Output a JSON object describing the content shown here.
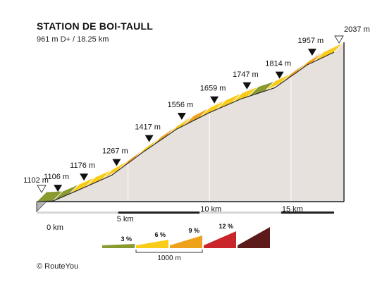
{
  "title": "STATION DE BOI-TAULL",
  "subtitle": "961 m D+ / 18.25 km",
  "credit": "© RouteYou",
  "colors": {
    "green": "#8a9a2e",
    "yellow": "#f9cc1a",
    "orange": "#eea21b",
    "red": "#c9252b",
    "darkred": "#5c1a1a",
    "wall": "#e7e1de",
    "slab": "#b5b5b5",
    "base": "#d0d0d0"
  },
  "legend": {
    "items": [
      {
        "label": "3 %",
        "color": "#8a9a2e"
      },
      {
        "label": "6 %",
        "color": "#f9cc1a"
      },
      {
        "label": "9 %",
        "color": "#eea21b"
      },
      {
        "label": "12 %",
        "color": "#c9252b"
      },
      {
        "label": "",
        "color": "#5c1a1a"
      }
    ],
    "scale_label": "1000 m"
  },
  "chart_data": {
    "type": "area",
    "title": "STATION DE BOI-TAULL",
    "subtitle": "961 m D+ / 18.25 km",
    "x_unit": "km",
    "y_unit": "m",
    "xlim": [
      0,
      18.25
    ],
    "x_ticks": [
      {
        "value": 0,
        "label": "0 km"
      },
      {
        "value": 5,
        "label": "5 km"
      },
      {
        "value": 10,
        "label": "10 km"
      },
      {
        "value": 15,
        "label": "15 km"
      }
    ],
    "markers": [
      {
        "km": 0,
        "elevation": 1102,
        "label": "1102 m",
        "kind": "start"
      },
      {
        "km": 1,
        "elevation": 1106,
        "label": "1106 m",
        "kind": "point"
      },
      {
        "km": 2.6,
        "elevation": 1176,
        "label": "1176 m",
        "kind": "point"
      },
      {
        "km": 4.6,
        "elevation": 1267,
        "label": "1267 m",
        "kind": "point"
      },
      {
        "km": 6.6,
        "elevation": 1417,
        "label": "1417 m",
        "kind": "point"
      },
      {
        "km": 8.6,
        "elevation": 1556,
        "label": "1556 m",
        "kind": "point"
      },
      {
        "km": 10.6,
        "elevation": 1659,
        "label": "1659 m",
        "kind": "point"
      },
      {
        "km": 12.6,
        "elevation": 1747,
        "label": "1747 m",
        "kind": "point"
      },
      {
        "km": 14.6,
        "elevation": 1814,
        "label": "1814 m",
        "kind": "point"
      },
      {
        "km": 16.6,
        "elevation": 1957,
        "label": "1957 m",
        "kind": "point"
      },
      {
        "km": 18.25,
        "elevation": 2037,
        "label": "2037 m",
        "kind": "end"
      }
    ],
    "profile": [
      {
        "km": 0,
        "elevation": 1102
      },
      {
        "km": 1,
        "elevation": 1106
      },
      {
        "km": 2.6,
        "elevation": 1176
      },
      {
        "km": 4.6,
        "elevation": 1267
      },
      {
        "km": 6.6,
        "elevation": 1417
      },
      {
        "km": 8.6,
        "elevation": 1556
      },
      {
        "km": 10.6,
        "elevation": 1659
      },
      {
        "km": 12.6,
        "elevation": 1747
      },
      {
        "km": 14.6,
        "elevation": 1814
      },
      {
        "km": 16.6,
        "elevation": 1957
      },
      {
        "km": 18.25,
        "elevation": 2037
      }
    ],
    "segments": [
      {
        "from_km": 0,
        "to_km": 1,
        "class": "green"
      },
      {
        "from_km": 1,
        "to_km": 2,
        "class": "green"
      },
      {
        "from_km": 2,
        "to_km": 3,
        "class": "yellow"
      },
      {
        "from_km": 3,
        "to_km": 4,
        "class": "yellow"
      },
      {
        "from_km": 4,
        "to_km": 5,
        "class": "yellow"
      },
      {
        "from_km": 5,
        "to_km": 6,
        "class": "orange"
      },
      {
        "from_km": 6,
        "to_km": 7,
        "class": "yellow"
      },
      {
        "from_km": 7,
        "to_km": 8,
        "class": "orange"
      },
      {
        "from_km": 8,
        "to_km": 9,
        "class": "yellow"
      },
      {
        "from_km": 9,
        "to_km": 10,
        "class": "orange"
      },
      {
        "from_km": 10,
        "to_km": 11,
        "class": "yellow"
      },
      {
        "from_km": 11,
        "to_km": 12,
        "class": "yellow"
      },
      {
        "from_km": 12,
        "to_km": 13,
        "class": "yellow"
      },
      {
        "from_km": 13,
        "to_km": 14,
        "class": "green"
      },
      {
        "from_km": 14,
        "to_km": 15,
        "class": "yellow"
      },
      {
        "from_km": 15,
        "to_km": 16,
        "class": "orange"
      },
      {
        "from_km": 16,
        "to_km": 17,
        "class": "orange"
      },
      {
        "from_km": 17,
        "to_km": 18.25,
        "class": "yellow"
      }
    ]
  }
}
